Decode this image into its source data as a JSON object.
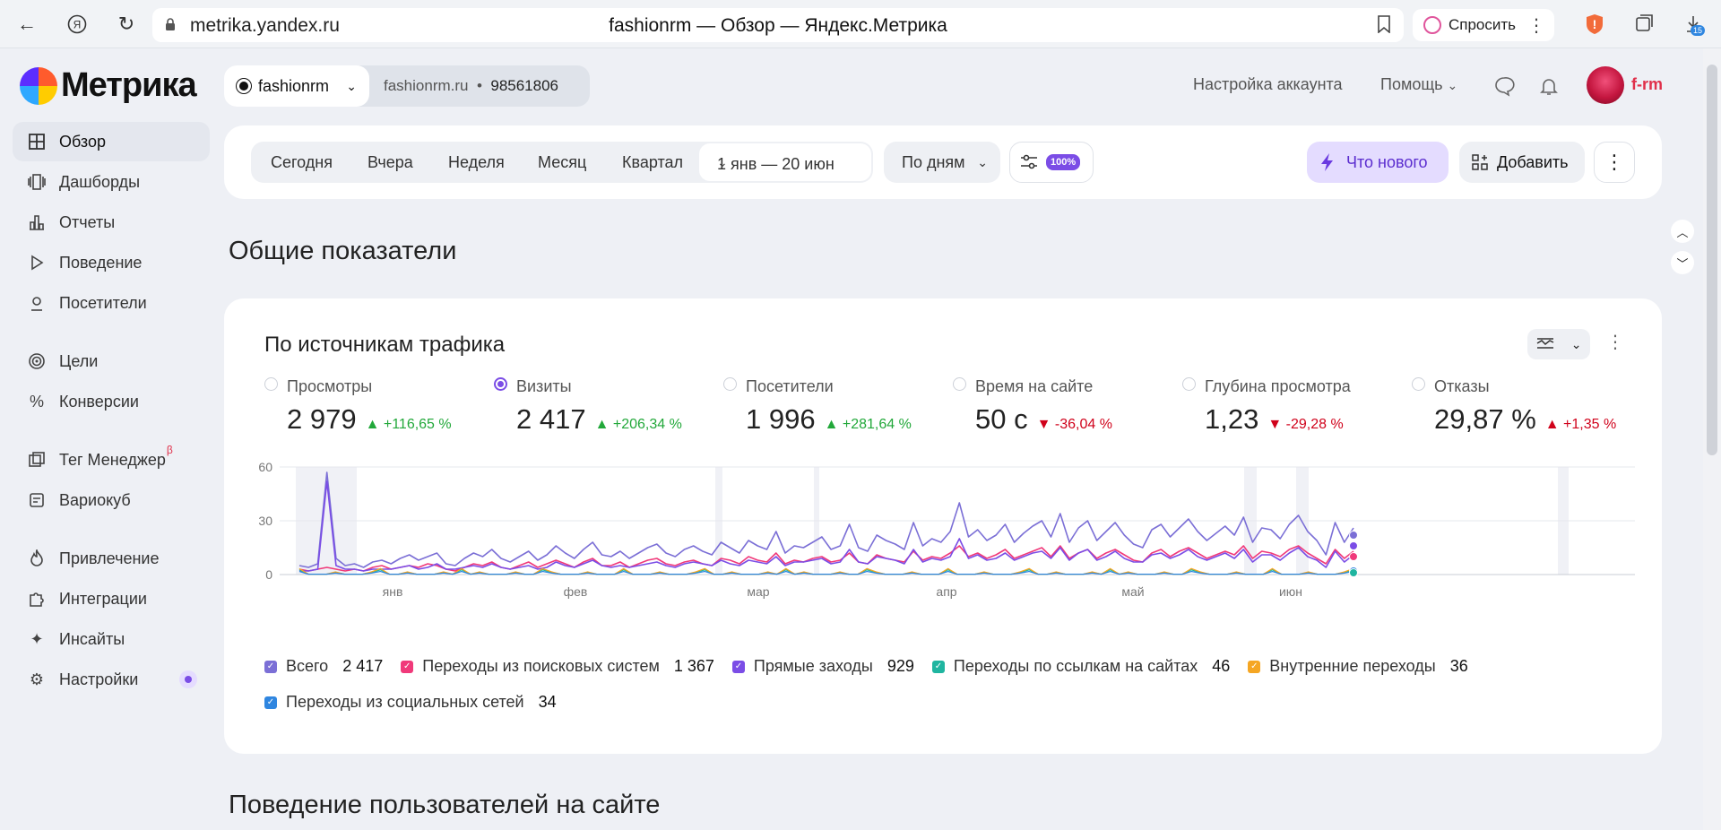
{
  "browser": {
    "url": "metrika.yandex.ru",
    "title": "fashionrm — Обзор — Яндекс.Метрика",
    "ask_label": "Спросить",
    "downloads_badge": "15"
  },
  "sidebar": {
    "logo": "Метрика",
    "items": [
      {
        "label": "Обзор",
        "icon": "grid-icon"
      },
      {
        "label": "Дашборды",
        "icon": "dashboards-icon"
      },
      {
        "label": "Отчеты",
        "icon": "bar-chart-icon"
      },
      {
        "label": "Поведение",
        "icon": "play-icon"
      },
      {
        "label": "Посетители",
        "icon": "user-icon"
      },
      {
        "label": "Цели",
        "icon": "target-icon"
      },
      {
        "label": "Конверсии",
        "icon": "percent-icon"
      },
      {
        "label": "Тег Менеджер",
        "icon": "tag-manager-icon",
        "beta": "β"
      },
      {
        "label": "Вариокуб",
        "icon": "variocube-icon"
      },
      {
        "label": "Привлечение",
        "icon": "flame-icon"
      },
      {
        "label": "Интеграции",
        "icon": "puzzle-icon"
      },
      {
        "label": "Инсайты",
        "icon": "sparkle-icon"
      },
      {
        "label": "Настройки",
        "icon": "gear-icon"
      }
    ]
  },
  "header": {
    "counter_name": "fashionrm",
    "site": "fashionrm.ru",
    "counter_id": "98561806",
    "account_settings": "Настройка аккаунта",
    "help": "Помощь",
    "user": "f-rm"
  },
  "toolbar": {
    "periods": [
      "Сегодня",
      "Вчера",
      "Неделя",
      "Месяц",
      "Квартал"
    ],
    "range": "1 янв — 20 июн",
    "group": "По дням",
    "sampling": "100%",
    "whats_new": "Что нового",
    "add": "Добавить"
  },
  "sections": {
    "general": "Общие показатели",
    "behavior": "Поведение пользователей на сайте"
  },
  "traffic_card": {
    "title": "По источникам трафика",
    "metrics": [
      {
        "label": "Просмотры",
        "value": "2 979",
        "delta": "+116,65 %",
        "dir": "up",
        "selected": false
      },
      {
        "label": "Визиты",
        "value": "2 417",
        "delta": "+206,34 %",
        "dir": "up",
        "selected": true
      },
      {
        "label": "Посетители",
        "value": "1 996",
        "delta": "+281,64 %",
        "dir": "up",
        "selected": false
      },
      {
        "label": "Время на сайте",
        "value": "50 с",
        "delta": "-36,04 %",
        "dir": "down",
        "selected": false
      },
      {
        "label": "Глубина просмотра",
        "value": "1,23",
        "delta": "-29,28 %",
        "dir": "down",
        "selected": false
      },
      {
        "label": "Отказы",
        "value": "29,87 %",
        "delta": "+1,35 %",
        "dir": "up-bad",
        "selected": false
      }
    ],
    "legend": [
      {
        "label": "Всего",
        "count": "2 417",
        "color": "#7b6fd6"
      },
      {
        "label": "Переходы из поисковых систем",
        "count": "1 367",
        "color": "#f0397a"
      },
      {
        "label": "Прямые заходы",
        "count": "929",
        "color": "#7b4de6"
      },
      {
        "label": "Переходы по ссылкам на сайтах",
        "count": "46",
        "color": "#1fb5a0"
      },
      {
        "label": "Внутренние переходы",
        "count": "36",
        "color": "#f5a623"
      },
      {
        "label": "Переходы из социальных сетей",
        "count": "34",
        "color": "#2f86e0"
      }
    ]
  },
  "chart_data": {
    "type": "line",
    "ylim": [
      0,
      60
    ],
    "yticks": [
      "60",
      "30",
      "0"
    ],
    "xticks": [
      "янв",
      "фев",
      "мар",
      "апр",
      "май",
      "июн"
    ],
    "series": [
      {
        "name": "Всего",
        "color": "#7b6fd6",
        "values": [
          5,
          4,
          6,
          57,
          9,
          5,
          6,
          4,
          7,
          8,
          6,
          9,
          11,
          8,
          10,
          12,
          6,
          5,
          9,
          12,
          10,
          14,
          9,
          7,
          10,
          13,
          8,
          11,
          16,
          12,
          9,
          14,
          18,
          11,
          10,
          13,
          9,
          12,
          15,
          17,
          12,
          10,
          14,
          16,
          13,
          11,
          18,
          15,
          12,
          19,
          16,
          14,
          24,
          12,
          16,
          15,
          18,
          21,
          14,
          16,
          28,
          15,
          13,
          22,
          19,
          17,
          14,
          29,
          16,
          20,
          18,
          24,
          40,
          21,
          25,
          19,
          22,
          28,
          18,
          23,
          27,
          30,
          21,
          34,
          18,
          26,
          30,
          19,
          24,
          29,
          22,
          17,
          15,
          25,
          28,
          21,
          26,
          31,
          24,
          19,
          23,
          27,
          22,
          32,
          18,
          26,
          25,
          20,
          28,
          33,
          24,
          19,
          11,
          29,
          18,
          26
        ]
      },
      {
        "name": "Переходы из поисковых систем",
        "color": "#f0397a",
        "values": [
          3,
          2,
          3,
          4,
          3,
          2,
          3,
          2,
          4,
          5,
          3,
          4,
          5,
          4,
          6,
          5,
          3,
          2,
          4,
          6,
          5,
          7,
          4,
          3,
          5,
          7,
          4,
          6,
          8,
          6,
          4,
          7,
          9,
          5,
          5,
          7,
          4,
          6,
          8,
          9,
          6,
          5,
          7,
          8,
          6,
          5,
          9,
          8,
          6,
          10,
          8,
          7,
          12,
          6,
          8,
          7,
          9,
          10,
          7,
          8,
          12,
          7,
          6,
          11,
          9,
          8,
          7,
          13,
          8,
          10,
          9,
          12,
          16,
          10,
          12,
          9,
          11,
          14,
          9,
          11,
          13,
          15,
          10,
          16,
          9,
          12,
          14,
          9,
          12,
          14,
          11,
          8,
          7,
          12,
          14,
          10,
          13,
          15,
          12,
          9,
          11,
          13,
          11,
          16,
          9,
          13,
          12,
          10,
          14,
          16,
          12,
          9,
          6,
          14,
          9,
          13
        ]
      },
      {
        "name": "Прямые заходы",
        "color": "#7b4de6",
        "values": [
          2,
          2,
          3,
          52,
          5,
          3,
          3,
          2,
          3,
          3,
          3,
          4,
          5,
          3,
          4,
          6,
          3,
          3,
          4,
          5,
          4,
          6,
          4,
          3,
          4,
          5,
          3,
          4,
          7,
          5,
          4,
          6,
          8,
          5,
          4,
          5,
          4,
          5,
          6,
          7,
          5,
          4,
          6,
          7,
          6,
          5,
          8,
          6,
          5,
          8,
          7,
          6,
          10,
          5,
          7,
          7,
          8,
          9,
          6,
          7,
          14,
          7,
          6,
          10,
          9,
          8,
          6,
          14,
          7,
          9,
          8,
          10,
          20,
          9,
          11,
          8,
          9,
          12,
          8,
          10,
          12,
          13,
          9,
          15,
          8,
          12,
          14,
          8,
          10,
          13,
          9,
          7,
          7,
          11,
          12,
          9,
          11,
          14,
          10,
          8,
          10,
          12,
          9,
          14,
          7,
          11,
          11,
          8,
          12,
          15,
          10,
          8,
          4,
          13,
          7,
          11
        ]
      }
    ]
  }
}
